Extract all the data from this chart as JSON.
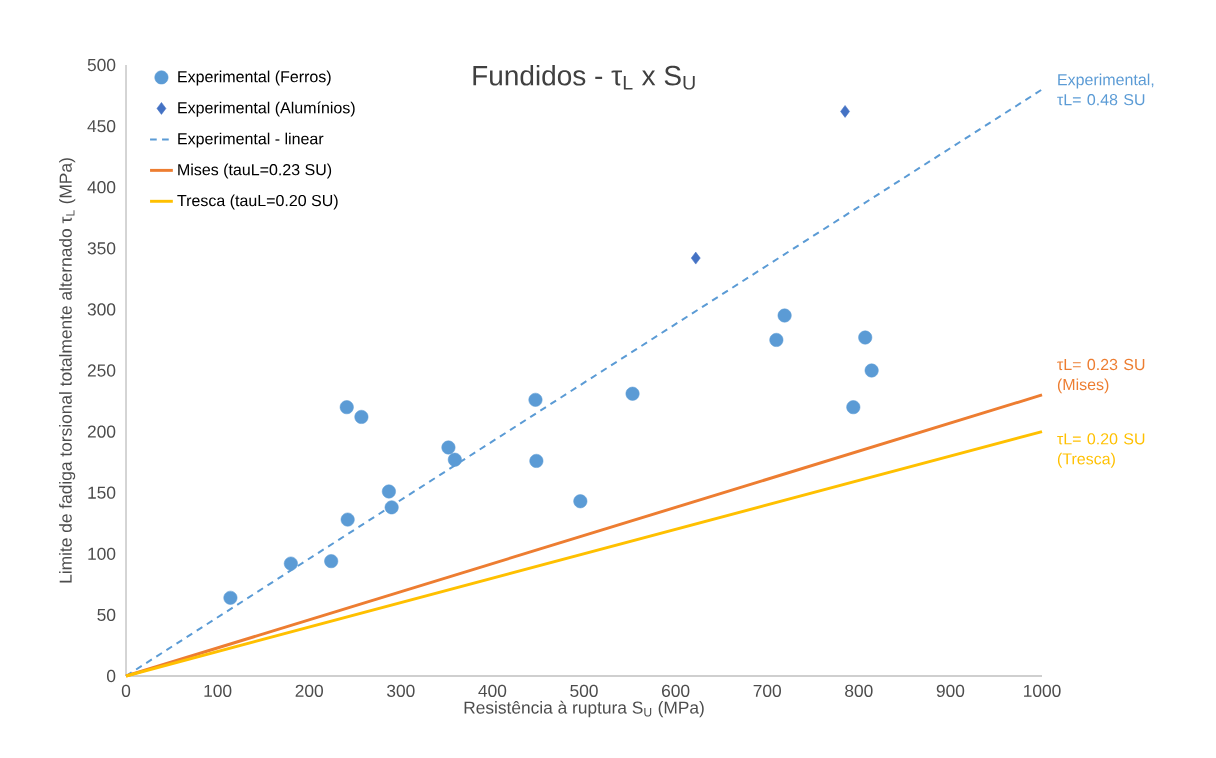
{
  "chart_data": {
    "type": "scatter",
    "title": "Fundidos - τ$_{L}$ x S$_{U}$",
    "xlabel": "Resistência à ruptura S$_{U}$ (MPa)",
    "ylabel": "Limite de fadiga torsional totalmente alternado τ$_{L}$ (MPa)",
    "xlim": [
      0,
      1000
    ],
    "ylim": [
      0,
      500
    ],
    "xticks": [
      0,
      100,
      200,
      300,
      400,
      500,
      600,
      700,
      800,
      900,
      1000
    ],
    "yticks": [
      0,
      50,
      100,
      150,
      200,
      250,
      300,
      350,
      400,
      450,
      500
    ],
    "grid": false,
    "legend": "top left",
    "series": [
      {
        "name": "Experimental (Ferros)",
        "marker": "circle",
        "color": "#5b9bd5",
        "x": [
          114,
          180,
          224,
          241,
          257,
          242,
          287,
          290,
          352,
          359,
          447,
          448,
          496,
          553,
          710,
          719,
          807,
          814,
          794
        ],
        "values": [
          64,
          92,
          94,
          220,
          212,
          128,
          151,
          138,
          187,
          177,
          226,
          176,
          143,
          231,
          275,
          295,
          277,
          250,
          220
        ]
      },
      {
        "name": "Experimental (Alumínios)",
        "marker": "diamond",
        "color": "#4472c4",
        "x": [
          622,
          785
        ],
        "values": [
          342,
          462
        ]
      },
      {
        "name": "Experimental - linear",
        "type": "line",
        "marker": "none",
        "line_style": "dashed",
        "color": "#5b9bd5",
        "x": [
          0,
          1000
        ],
        "values": [
          0,
          480
        ]
      },
      {
        "name": "Mises (tauL=0.23 SU)",
        "type": "line",
        "marker": "none",
        "line_style": "solid",
        "color": "#ed7d31",
        "x": [
          0,
          1000
        ],
        "values": [
          0,
          230
        ]
      },
      {
        "name": "Tresca (tauL=0.20 SU)",
        "type": "line",
        "marker": "none",
        "line_style": "solid",
        "color": "#ffc000",
        "x": [
          0,
          1000
        ],
        "values": [
          0,
          200
        ]
      }
    ],
    "annotations": [
      "Experimental, τL= 0.48 SU",
      "τL= 0.23 SU (Mises)",
      "τL= 0.20 SU (Tresca)"
    ]
  }
}
